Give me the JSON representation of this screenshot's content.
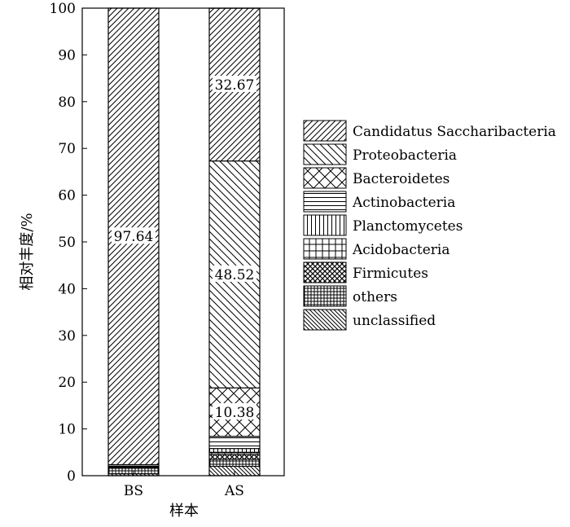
{
  "chart_data": {
    "type": "bar",
    "stacked": true,
    "categories": [
      "BS",
      "AS"
    ],
    "xlabel": "样本",
    "ylabel": "相对丰度/%",
    "ylim": [
      0,
      100
    ],
    "yticks": [
      0,
      10,
      20,
      30,
      40,
      50,
      60,
      70,
      80,
      90,
      100
    ],
    "grid": false,
    "legend_position": "right",
    "series": [
      {
        "name": "unclassified",
        "pattern": "back-diag-dense",
        "values": [
          0.4,
          2.0
        ]
      },
      {
        "name": "others",
        "pattern": "grid-dense",
        "values": [
          1.2,
          1.5
        ]
      },
      {
        "name": "Firmicutes",
        "pattern": "crosshatch-dense",
        "values": [
          0.2,
          1.0
        ]
      },
      {
        "name": "Acidobacteria",
        "pattern": "grid",
        "values": [
          0.1,
          0.5
        ]
      },
      {
        "name": "Planctomycetes",
        "pattern": "vertical",
        "values": [
          0.1,
          0.8
        ]
      },
      {
        "name": "Actinobacteria",
        "pattern": "horizontal",
        "values": [
          0.3,
          2.6
        ]
      },
      {
        "name": "Bacteroidetes",
        "pattern": "crosshatch",
        "values": [
          0.06,
          10.38
        ]
      },
      {
        "name": "Proteobacteria",
        "pattern": "back-diag",
        "values": [
          0.0,
          48.52
        ]
      },
      {
        "name": "Candidatus Saccharibacteria",
        "pattern": "forward-diag",
        "values": [
          97.64,
          32.67
        ]
      }
    ],
    "legend_order": [
      "Candidatus Saccharibacteria",
      "Proteobacteria",
      "Bacteroidetes",
      "Actinobacteria",
      "Planctomycetes",
      "Acidobacteria",
      "Firmicutes",
      "others",
      "unclassified"
    ],
    "data_labels": [
      {
        "category": "BS",
        "series": "Candidatus Saccharibacteria",
        "text": "97.64"
      },
      {
        "category": "AS",
        "series": "Candidatus Saccharibacteria",
        "text": "32.67"
      },
      {
        "category": "AS",
        "series": "Proteobacteria",
        "text": "48.52"
      },
      {
        "category": "AS",
        "series": "Bacteroidetes",
        "text": "10.38"
      }
    ]
  }
}
